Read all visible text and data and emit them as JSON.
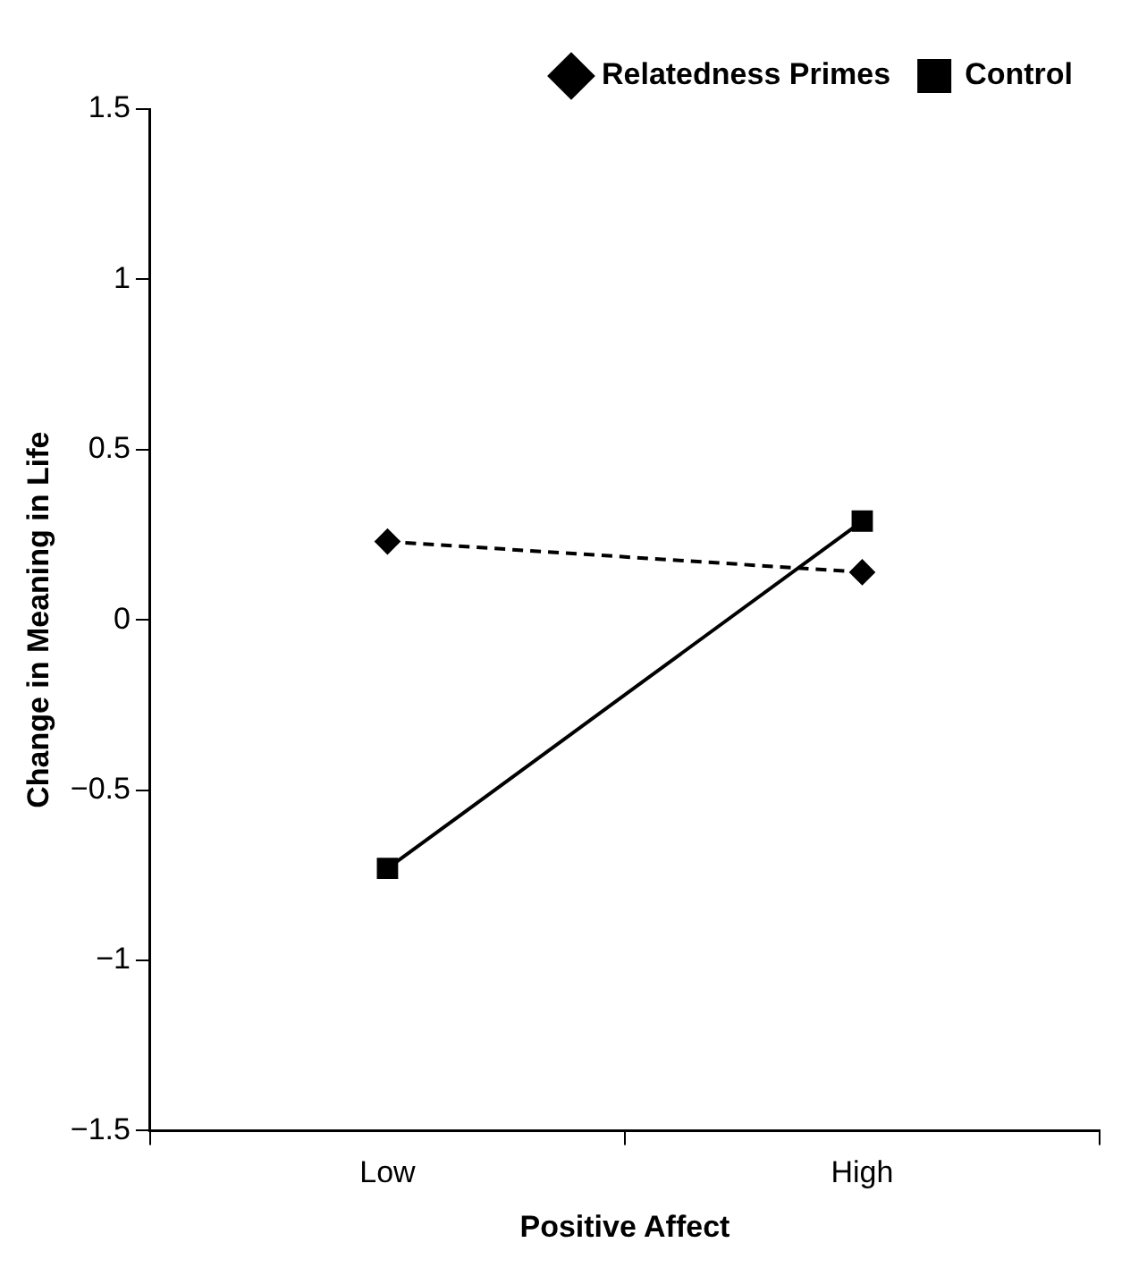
{
  "chart_data": {
    "type": "line",
    "xlabel": "Positive Affect",
    "ylabel": "Change in Meaning in Life",
    "categories": [
      "Low",
      "High"
    ],
    "series": [
      {
        "name": "Relatedness Primes",
        "color": "#000000",
        "values": [
          0.23,
          0.14
        ],
        "marker": "diamond",
        "line_style": "dashed"
      },
      {
        "name": "Control",
        "color": "#000000",
        "values": [
          -0.73,
          0.29
        ],
        "marker": "square",
        "line_style": "solid"
      }
    ],
    "ylim": [
      -1.5,
      1.5
    ],
    "yticks": [
      {
        "value": -1.5,
        "label": "−1.5"
      },
      {
        "value": -1,
        "label": "−1"
      },
      {
        "value": -0.5,
        "label": "−0.5"
      },
      0,
      0.5,
      1,
      1.5
    ],
    "grid": false,
    "legend": "top right"
  }
}
